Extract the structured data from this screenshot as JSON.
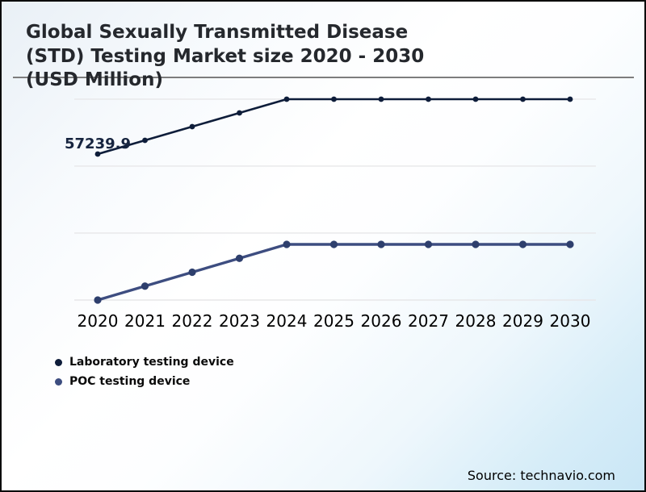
{
  "page": {
    "title_lines": [
      "Global Sexually Transmitted Disease",
      "(STD) Testing Market size 2020 - 2030",
      "(USD Million)"
    ],
    "source": "Source: technavio.com"
  },
  "chart_data": {
    "type": "line",
    "title": "Global Sexually Transmitted Disease (STD) Testing Market size 2020 - 2030 (USD Million)",
    "xlabel": "",
    "ylabel": "USD Million",
    "categories": [
      "2020",
      "2021",
      "2022",
      "2023",
      "2024",
      "2025",
      "2026",
      "2027",
      "2028",
      "2029",
      "2030"
    ],
    "series": [
      {
        "name": "Laboratory testing device",
        "color": "#0e1d3a",
        "marker_color": "#0e1d3a",
        "values": [
          57239.9,
          61336,
          65432,
          69529,
          73625,
          73625,
          73625,
          73625,
          73625,
          73625,
          73625
        ]
      },
      {
        "name": "POC testing device",
        "color": "#3d4d80",
        "marker_color": "#2e3f6d",
        "values": [
          13630,
          17786,
          21943,
          26099,
          30256,
          30256,
          30256,
          30256,
          30256,
          30256,
          30256
        ]
      }
    ],
    "data_labels": [
      {
        "series": 0,
        "index": 0,
        "text": "57239.9"
      }
    ],
    "ylim": [
      11700,
      77480
    ],
    "gridline_values": [
      13630,
      33630,
      53630,
      73630
    ],
    "grid": "horizontal-only",
    "legend_position": "bottom-left",
    "colors": {
      "gridline": "#e7e7e9",
      "divider_rule": "#7d7d7d",
      "data_label_text": "#16243f",
      "axis_text": "#000000"
    }
  }
}
